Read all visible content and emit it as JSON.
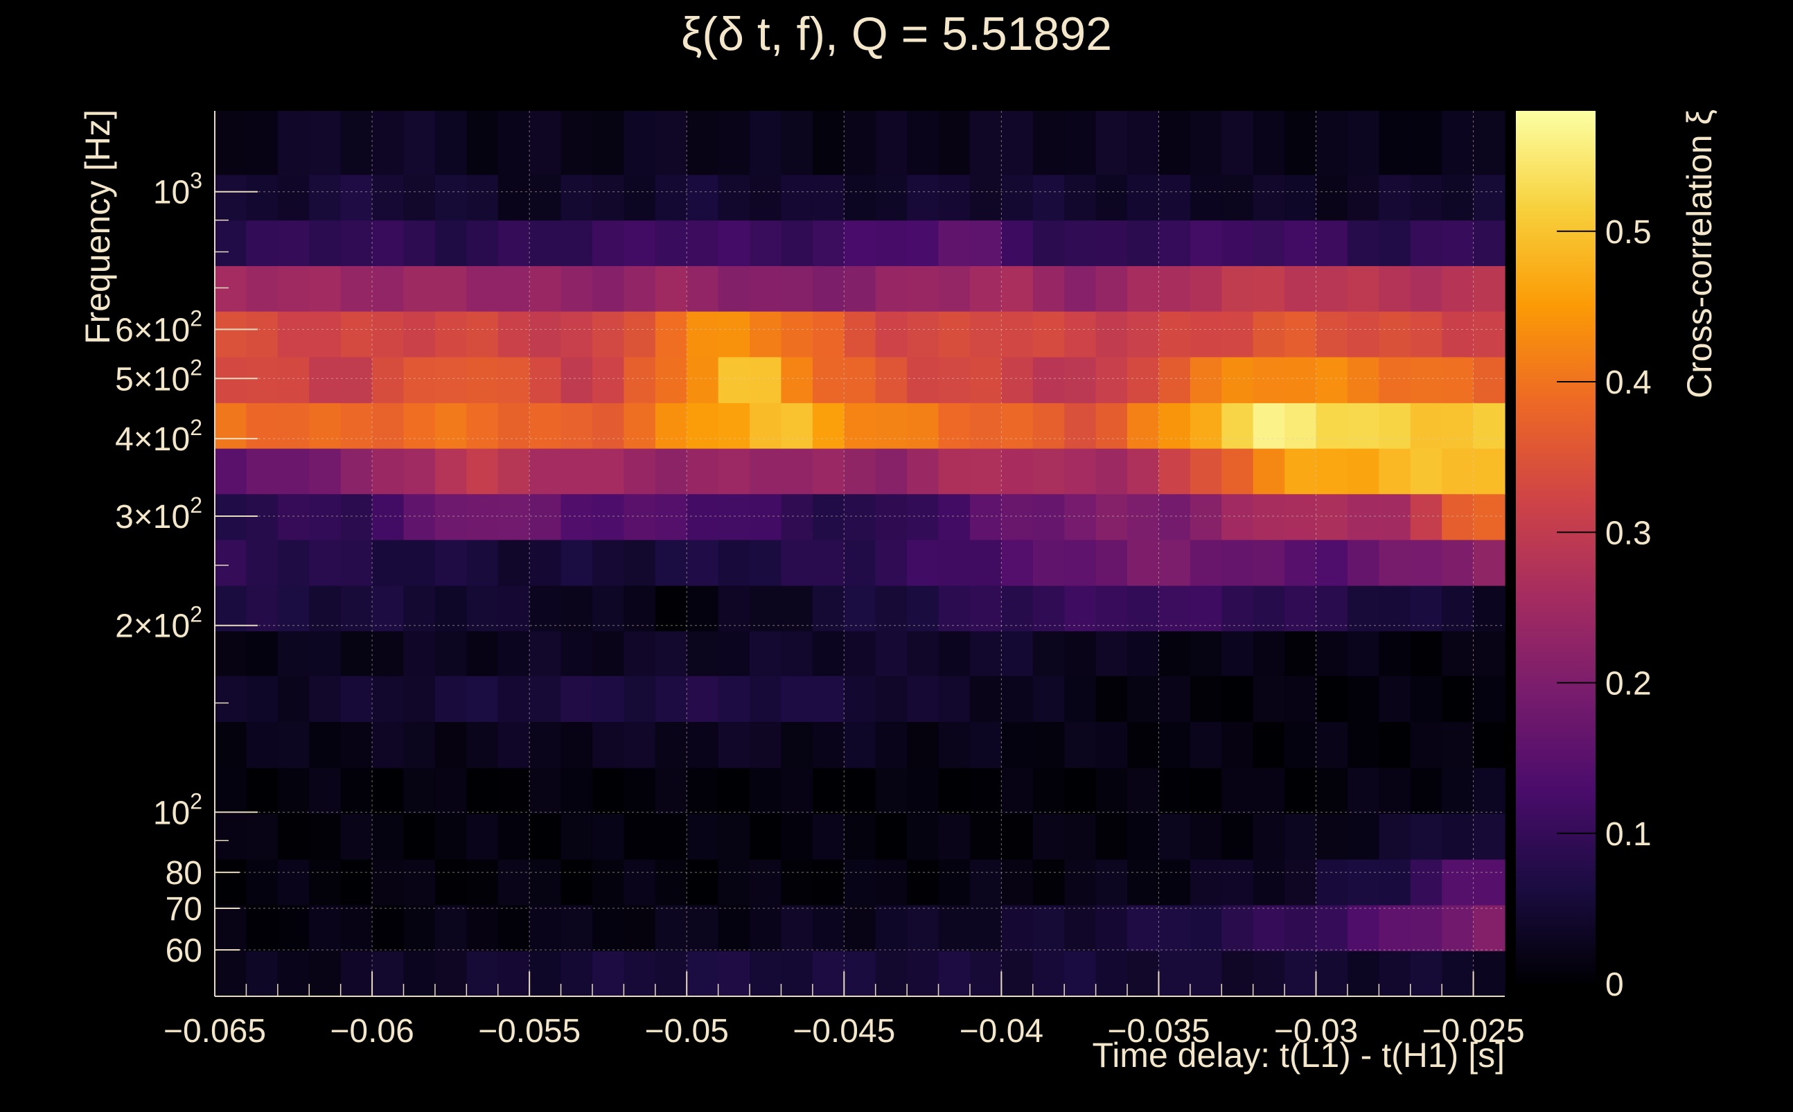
{
  "chart_data": {
    "type": "heatmap",
    "title": "ξ(δ t, f), Q = 5.51892",
    "xlabel": "Time delay: t(L1) - t(H1) [s]",
    "ylabel": "Frequency [Hz]",
    "colorbar_label": "Cross-correlation ξ",
    "x_range": [
      -0.065,
      -0.024
    ],
    "y_range": [
      50.5,
      1350
    ],
    "y_scale": "log",
    "z_range": [
      0,
      0.58
    ],
    "grid": true,
    "colormap": [
      "#000004",
      "#1b0c41",
      "#4a0c6b",
      "#781c6d",
      "#a52c60",
      "#cf4446",
      "#ed6925",
      "#fb9b06",
      "#f7d13d",
      "#fcffa4"
    ],
    "x_ticks": [
      {
        "value": -0.065,
        "label": "−0.065"
      },
      {
        "value": -0.06,
        "label": "−0.06"
      },
      {
        "value": -0.055,
        "label": "−0.055"
      },
      {
        "value": -0.05,
        "label": "−0.05"
      },
      {
        "value": -0.045,
        "label": "−0.045"
      },
      {
        "value": -0.04,
        "label": "−0.04"
      },
      {
        "value": -0.035,
        "label": "−0.035"
      },
      {
        "value": -0.03,
        "label": "−0.03"
      },
      {
        "value": -0.025,
        "label": "−0.025"
      }
    ],
    "y_ticks": [
      {
        "value": 60,
        "base": "60",
        "exp": ""
      },
      {
        "value": 70,
        "base": "70",
        "exp": ""
      },
      {
        "value": 80,
        "base": "80",
        "exp": ""
      },
      {
        "value": 100,
        "base": "10",
        "exp": "2"
      },
      {
        "value": 200,
        "base": "2×10",
        "exp": "2"
      },
      {
        "value": 300,
        "base": "3×10",
        "exp": "2"
      },
      {
        "value": 400,
        "base": "4×10",
        "exp": "2"
      },
      {
        "value": 500,
        "base": "5×10",
        "exp": "2"
      },
      {
        "value": 600,
        "base": "6×10",
        "exp": "2"
      },
      {
        "value": 1000,
        "base": "10",
        "exp": "3"
      }
    ],
    "colorbar_ticks": [
      {
        "value": 0,
        "label": "0"
      },
      {
        "value": 0.1,
        "label": "0.1"
      },
      {
        "value": 0.2,
        "label": "0.2"
      },
      {
        "value": 0.3,
        "label": "0.3"
      },
      {
        "value": 0.4,
        "label": "0.4"
      },
      {
        "value": 0.5,
        "label": "0.5"
      }
    ],
    "x_bins": {
      "start": -0.065,
      "width": 0.001,
      "count": 41
    },
    "freq_bands": [
      {
        "lo": 50.5,
        "hi": 59.8,
        "keys": [
          [
            -0.065,
            0.02
          ],
          [
            -0.05,
            0.06
          ],
          [
            -0.035,
            0.05
          ],
          [
            -0.025,
            0.04
          ]
        ]
      },
      {
        "lo": 59.8,
        "hi": 70.9,
        "keys": [
          [
            -0.065,
            0.01
          ],
          [
            -0.05,
            0.02
          ],
          [
            -0.04,
            0.04
          ],
          [
            -0.035,
            0.06
          ],
          [
            -0.03,
            0.1
          ],
          [
            -0.027,
            0.16
          ],
          [
            -0.025,
            0.2
          ]
        ]
      },
      {
        "lo": 70.9,
        "hi": 84.0,
        "keys": [
          [
            -0.065,
            0.01
          ],
          [
            -0.045,
            0.01
          ],
          [
            -0.035,
            0.02
          ],
          [
            -0.03,
            0.04
          ],
          [
            -0.027,
            0.08
          ],
          [
            -0.025,
            0.15
          ]
        ]
      },
      {
        "lo": 84.0,
        "hi": 99.5,
        "keys": [
          [
            -0.065,
            0.01
          ],
          [
            -0.04,
            0.01
          ],
          [
            -0.03,
            0.02
          ],
          [
            -0.027,
            0.04
          ],
          [
            -0.025,
            0.06
          ]
        ]
      },
      {
        "lo": 99.5,
        "hi": 118,
        "keys": [
          [
            -0.065,
            0.01
          ],
          [
            -0.04,
            0.005
          ],
          [
            -0.03,
            0.01
          ],
          [
            -0.025,
            0.02
          ]
        ]
      },
      {
        "lo": 118,
        "hi": 140,
        "keys": [
          [
            -0.065,
            0.02
          ],
          [
            -0.05,
            0.03
          ],
          [
            -0.04,
            0.02
          ],
          [
            -0.03,
            0.01
          ],
          [
            -0.025,
            0.01
          ]
        ]
      },
      {
        "lo": 140,
        "hi": 166,
        "keys": [
          [
            -0.065,
            0.03
          ],
          [
            -0.055,
            0.06
          ],
          [
            -0.048,
            0.07
          ],
          [
            -0.04,
            0.03
          ],
          [
            -0.035,
            0.01
          ],
          [
            -0.025,
            0.01
          ]
        ]
      },
      {
        "lo": 166,
        "hi": 196,
        "keys": [
          [
            -0.065,
            0.02
          ],
          [
            -0.055,
            0.03
          ],
          [
            -0.045,
            0.04
          ],
          [
            -0.04,
            0.04
          ],
          [
            -0.035,
            0.02
          ],
          [
            -0.025,
            0.01
          ]
        ]
      },
      {
        "lo": 196,
        "hi": 232,
        "keys": [
          [
            -0.065,
            0.07
          ],
          [
            -0.055,
            0.04
          ],
          [
            -0.05,
            0.01
          ],
          [
            -0.045,
            0.05
          ],
          [
            -0.04,
            0.09
          ],
          [
            -0.035,
            0.11
          ],
          [
            -0.03,
            0.08
          ],
          [
            -0.025,
            0.04
          ]
        ]
      },
      {
        "lo": 232,
        "hi": 275,
        "keys": [
          [
            -0.065,
            0.09
          ],
          [
            -0.055,
            0.05
          ],
          [
            -0.05,
            0.06
          ],
          [
            -0.045,
            0.08
          ],
          [
            -0.04,
            0.13
          ],
          [
            -0.035,
            0.2
          ],
          [
            -0.03,
            0.14
          ],
          [
            -0.025,
            0.22
          ]
        ]
      },
      {
        "lo": 275,
        "hi": 326,
        "keys": [
          [
            -0.065,
            0.08
          ],
          [
            -0.06,
            0.1
          ],
          [
            -0.057,
            0.2
          ],
          [
            -0.053,
            0.14
          ],
          [
            -0.05,
            0.14
          ],
          [
            -0.047,
            0.1
          ],
          [
            -0.044,
            0.07
          ],
          [
            -0.04,
            0.16
          ],
          [
            -0.037,
            0.2
          ],
          [
            -0.034,
            0.2
          ],
          [
            -0.031,
            0.28
          ],
          [
            -0.028,
            0.24
          ],
          [
            -0.025,
            0.38
          ]
        ]
      },
      {
        "lo": 326,
        "hi": 386,
        "keys": [
          [
            -0.065,
            0.14
          ],
          [
            -0.06,
            0.22
          ],
          [
            -0.057,
            0.3
          ],
          [
            -0.053,
            0.25
          ],
          [
            -0.05,
            0.23
          ],
          [
            -0.047,
            0.24
          ],
          [
            -0.044,
            0.22
          ],
          [
            -0.04,
            0.28
          ],
          [
            -0.037,
            0.24
          ],
          [
            -0.034,
            0.32
          ],
          [
            -0.031,
            0.45
          ],
          [
            -0.028,
            0.48
          ],
          [
            -0.025,
            0.5
          ]
        ]
      },
      {
        "lo": 386,
        "hi": 457,
        "keys": [
          [
            -0.065,
            0.4
          ],
          [
            -0.061,
            0.38
          ],
          [
            -0.057,
            0.4
          ],
          [
            -0.053,
            0.36
          ],
          [
            -0.05,
            0.44
          ],
          [
            -0.047,
            0.5
          ],
          [
            -0.044,
            0.42
          ],
          [
            -0.04,
            0.38
          ],
          [
            -0.037,
            0.35
          ],
          [
            -0.033,
            0.5
          ],
          [
            -0.031,
            0.57
          ],
          [
            -0.029,
            0.52
          ],
          [
            -0.025,
            0.5
          ]
        ]
      },
      {
        "lo": 457,
        "hi": 542,
        "keys": [
          [
            -0.065,
            0.35
          ],
          [
            -0.061,
            0.3
          ],
          [
            -0.057,
            0.38
          ],
          [
            -0.053,
            0.3
          ],
          [
            -0.05,
            0.42
          ],
          [
            -0.048,
            0.52
          ],
          [
            -0.046,
            0.4
          ],
          [
            -0.043,
            0.34
          ],
          [
            -0.04,
            0.32
          ],
          [
            -0.037,
            0.28
          ],
          [
            -0.035,
            0.36
          ],
          [
            -0.032,
            0.44
          ],
          [
            -0.029,
            0.42
          ],
          [
            -0.025,
            0.38
          ]
        ]
      },
      {
        "lo": 542,
        "hi": 642,
        "keys": [
          [
            -0.065,
            0.34
          ],
          [
            -0.061,
            0.32
          ],
          [
            -0.057,
            0.33
          ],
          [
            -0.053,
            0.3
          ],
          [
            -0.05,
            0.42
          ],
          [
            -0.048,
            0.44
          ],
          [
            -0.046,
            0.38
          ],
          [
            -0.043,
            0.32
          ],
          [
            -0.04,
            0.34
          ],
          [
            -0.037,
            0.31
          ],
          [
            -0.034,
            0.32
          ],
          [
            -0.031,
            0.36
          ],
          [
            -0.028,
            0.34
          ],
          [
            -0.025,
            0.32
          ]
        ]
      },
      {
        "lo": 642,
        "hi": 760,
        "keys": [
          [
            -0.065,
            0.26
          ],
          [
            -0.061,
            0.24
          ],
          [
            -0.057,
            0.24
          ],
          [
            -0.053,
            0.22
          ],
          [
            -0.05,
            0.24
          ],
          [
            -0.047,
            0.2
          ],
          [
            -0.044,
            0.22
          ],
          [
            -0.04,
            0.26
          ],
          [
            -0.037,
            0.22
          ],
          [
            -0.034,
            0.28
          ],
          [
            -0.031,
            0.3
          ],
          [
            -0.028,
            0.28
          ],
          [
            -0.025,
            0.28
          ]
        ]
      },
      {
        "lo": 760,
        "hi": 900,
        "keys": [
          [
            -0.065,
            0.08
          ],
          [
            -0.061,
            0.1
          ],
          [
            -0.057,
            0.08
          ],
          [
            -0.053,
            0.1
          ],
          [
            -0.05,
            0.12
          ],
          [
            -0.047,
            0.1
          ],
          [
            -0.044,
            0.12
          ],
          [
            -0.041,
            0.16
          ],
          [
            -0.038,
            0.08
          ],
          [
            -0.035,
            0.1
          ],
          [
            -0.031,
            0.12
          ],
          [
            -0.028,
            0.08
          ],
          [
            -0.025,
            0.1
          ]
        ]
      },
      {
        "lo": 900,
        "hi": 1066,
        "keys": [
          [
            -0.065,
            0.04
          ],
          [
            -0.06,
            0.06
          ],
          [
            -0.055,
            0.03
          ],
          [
            -0.05,
            0.05
          ],
          [
            -0.045,
            0.04
          ],
          [
            -0.04,
            0.05
          ],
          [
            -0.035,
            0.04
          ],
          [
            -0.03,
            0.03
          ],
          [
            -0.025,
            0.05
          ]
        ]
      },
      {
        "lo": 1066,
        "hi": 1350,
        "keys": [
          [
            -0.065,
            0.02
          ],
          [
            -0.06,
            0.04
          ],
          [
            -0.055,
            0.02
          ],
          [
            -0.05,
            0.03
          ],
          [
            -0.045,
            0.02
          ],
          [
            -0.04,
            0.03
          ],
          [
            -0.035,
            0.03
          ],
          [
            -0.03,
            0.02
          ],
          [
            -0.025,
            0.02
          ]
        ]
      }
    ]
  }
}
